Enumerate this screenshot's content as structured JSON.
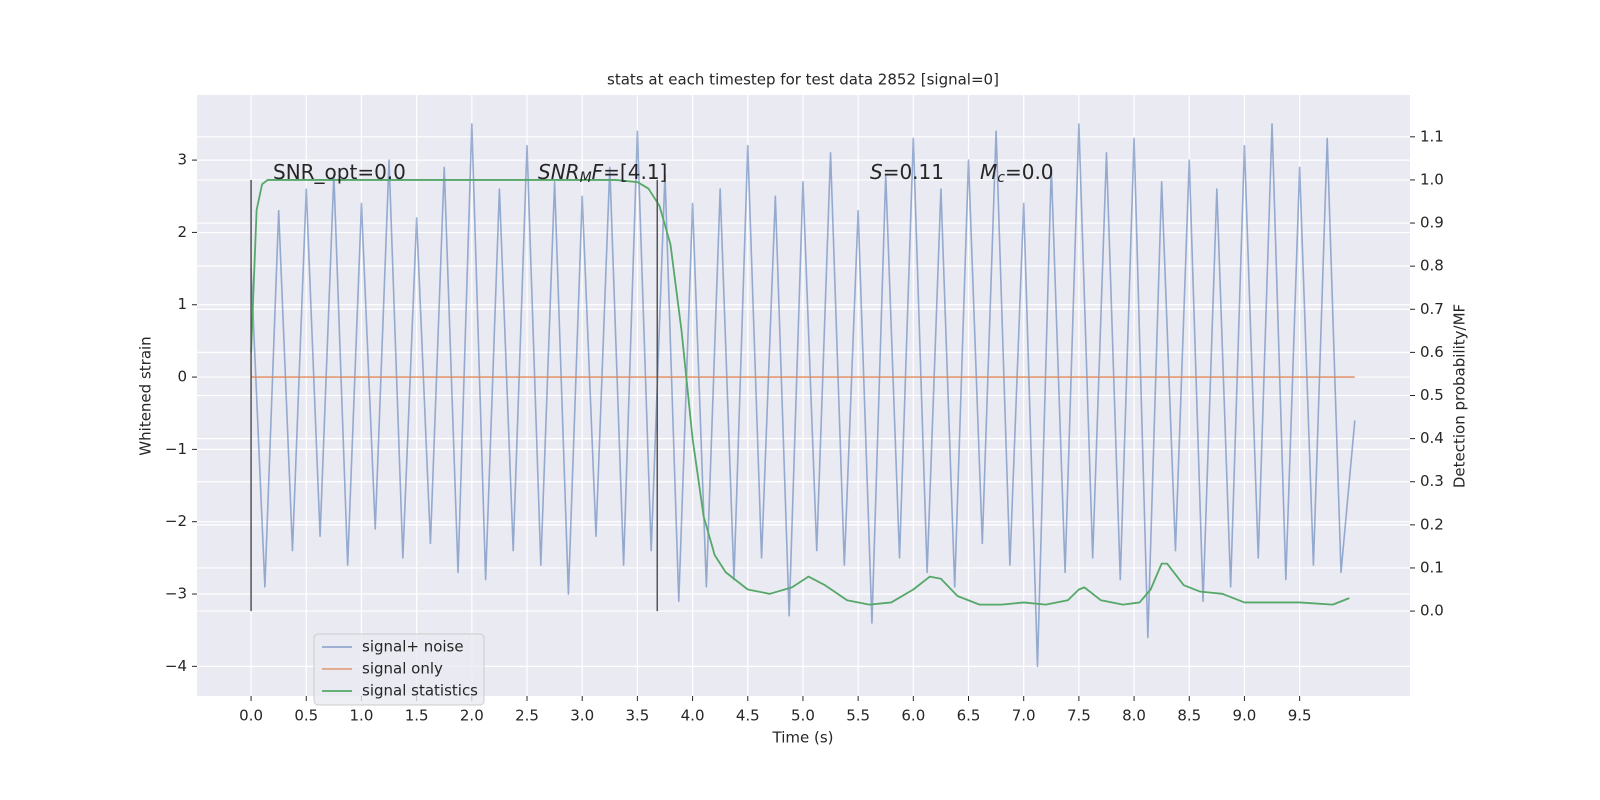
{
  "chart_data": {
    "type": "line",
    "title": "stats at each timestep for test data 2852 [signal=0]",
    "xlabel": "Time (s)",
    "ylabel": "Whitened strain",
    "y2label": "Detection probability/MF",
    "xlim": [
      -0.49,
      10.5
    ],
    "ylim": [
      -4.41,
      3.9
    ],
    "y2lim": [
      -0.197,
      1.197
    ],
    "xticks": [
      {
        "value": 0,
        "label": "0.0"
      },
      0.5,
      {
        "value": 1,
        "label": "1.0"
      },
      1.5,
      {
        "value": 2,
        "label": "2.0"
      },
      2.5,
      {
        "value": 3,
        "label": "3.0"
      },
      3.5,
      {
        "value": 4,
        "label": "4.0"
      },
      4.5,
      {
        "value": 5,
        "label": "5.0"
      },
      5.5,
      {
        "value": 6,
        "label": "6.0"
      },
      6.5,
      {
        "value": 7,
        "label": "7.0"
      },
      7.5,
      {
        "value": 8,
        "label": "8.0"
      },
      8.5,
      {
        "value": 9,
        "label": "9.0"
      },
      9.5
    ],
    "yticks": [
      {
        "value": -4,
        "label": "−4"
      },
      {
        "value": -3,
        "label": "−3"
      },
      {
        "value": -2,
        "label": "−2"
      },
      {
        "value": -1,
        "label": "−1"
      },
      0,
      1,
      2,
      3
    ],
    "y2ticks": [
      {
        "value": 0,
        "label": "0.0"
      },
      0.1,
      0.2,
      0.3,
      0.4,
      0.5,
      0.6,
      0.7,
      0.8,
      0.9,
      {
        "value": 1,
        "label": "1.0"
      },
      1.1
    ],
    "grid": true,
    "legend": "lower left",
    "series": [
      {
        "name": "signal+ noise",
        "color": "#4c72b0",
        "x": [
          0,
          0.125,
          0.25,
          0.375,
          0.5,
          0.625,
          0.75,
          0.875,
          1,
          1.125,
          1.25,
          1.375,
          1.5,
          1.625,
          1.75,
          1.875,
          2,
          2.125,
          2.25,
          2.375,
          2.5,
          2.625,
          2.75,
          2.875,
          3,
          3.125,
          3.25,
          3.375,
          3.5,
          3.625,
          3.75,
          3.875,
          4,
          4.125,
          4.25,
          4.375,
          4.5,
          4.625,
          4.75,
          4.875,
          5,
          5.125,
          5.25,
          5.375,
          5.5,
          5.625,
          5.75,
          5.875,
          6,
          6.125,
          6.25,
          6.375,
          6.5,
          6.625,
          6.75,
          6.875,
          7,
          7.125,
          7.25,
          7.375,
          7.5,
          7.625,
          7.75,
          7.875,
          8,
          8.125,
          8.25,
          8.375,
          8.5,
          8.625,
          8.75,
          8.875,
          9,
          9.125,
          9.25,
          9.375,
          9.5,
          9.625,
          9.75,
          9.875,
          10
        ],
        "values": [
          1.5,
          -2.9,
          2.3,
          -2.4,
          2.6,
          -2.2,
          2.8,
          -2.6,
          2.4,
          -2.1,
          3.0,
          -2.5,
          2.2,
          -2.3,
          2.9,
          -2.7,
          3.5,
          -2.8,
          2.6,
          -2.4,
          3.2,
          -2.6,
          2.7,
          -3.0,
          2.5,
          -2.2,
          2.9,
          -2.6,
          3.4,
          -2.4,
          2.8,
          -3.1,
          2.4,
          -2.9,
          2.6,
          -2.8,
          3.2,
          -2.5,
          2.5,
          -3.3,
          2.7,
          -2.4,
          3.1,
          -2.6,
          2.3,
          -3.4,
          2.8,
          -2.5,
          3.3,
          -2.7,
          2.6,
          -2.9,
          3.0,
          -2.3,
          3.4,
          -2.6,
          2.4,
          -4.0,
          2.9,
          -2.7,
          3.5,
          -2.5,
          3.1,
          -2.8,
          3.3,
          -3.6,
          2.7,
          -2.4,
          3.0,
          -3.1,
          2.6,
          -2.9,
          3.2,
          -2.5,
          3.5,
          -2.8,
          2.9,
          -2.6,
          3.3,
          -2.7,
          -0.6
        ]
      },
      {
        "name": "signal only",
        "color": "#dd8452",
        "x": [
          0,
          10
        ],
        "values": [
          0,
          0
        ]
      },
      {
        "name": "signal statistics",
        "color": "#55a868",
        "axis": "y2",
        "x": [
          0,
          0.05,
          0.1,
          0.15,
          0.2,
          0.5,
          1,
          1.5,
          2,
          2.5,
          3,
          3.3,
          3.5,
          3.6,
          3.7,
          3.8,
          3.9,
          4.0,
          4.1,
          4.2,
          4.3,
          4.5,
          4.7,
          4.9,
          5.05,
          5.2,
          5.4,
          5.6,
          5.8,
          6.0,
          6.15,
          6.25,
          6.4,
          6.6,
          6.8,
          7.0,
          7.2,
          7.4,
          7.5,
          7.55,
          7.7,
          7.9,
          8.05,
          8.15,
          8.25,
          8.3,
          8.45,
          8.6,
          8.8,
          9.0,
          9.5,
          9.8,
          9.95
        ],
        "values": [
          0.6,
          0.93,
          0.99,
          1.0,
          1.0,
          1.0,
          1.0,
          1.0,
          1.0,
          1.0,
          1.0,
          1.0,
          0.995,
          0.98,
          0.94,
          0.85,
          0.65,
          0.4,
          0.22,
          0.13,
          0.09,
          0.05,
          0.04,
          0.055,
          0.08,
          0.06,
          0.025,
          0.015,
          0.02,
          0.05,
          0.08,
          0.075,
          0.035,
          0.015,
          0.015,
          0.02,
          0.015,
          0.025,
          0.05,
          0.055,
          0.025,
          0.015,
          0.02,
          0.05,
          0.11,
          0.11,
          0.06,
          0.045,
          0.04,
          0.02,
          0.02,
          0.015,
          0.03
        ]
      }
    ],
    "vlines": [
      0,
      3.68
    ],
    "vline_range": [
      0,
      1
    ],
    "annotations": [
      [
        "SNR_opt=0.0"
      ],
      [
        "SNR",
        "M",
        "F",
        "=[4.1]"
      ],
      [
        "S",
        "=0.11"
      ],
      [
        "M",
        "c",
        "=0.0"
      ]
    ]
  }
}
